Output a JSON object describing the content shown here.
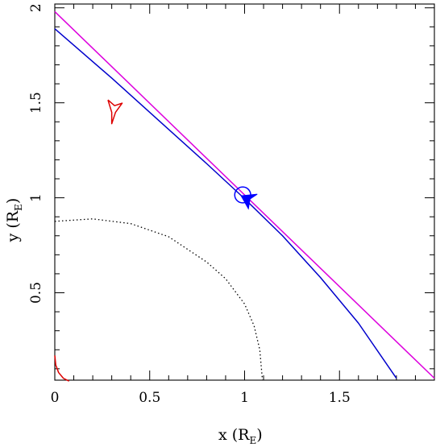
{
  "chart_data": {
    "type": "line",
    "xlabel": "x (R",
    "xlabel_sub": "E",
    "ylabel": "y (R",
    "ylabel_sub": "E",
    "label_close": ")",
    "xlim": [
      0,
      2
    ],
    "ylim": [
      0.04,
      2.02
    ],
    "x_ticks": [
      0,
      0.5,
      1,
      1.5
    ],
    "x_tick_labels": [
      "0",
      "0.5",
      "1",
      "1.5"
    ],
    "y_ticks": [
      0.5,
      1,
      1.5,
      2
    ],
    "y_tick_labels": [
      "0.5",
      "1",
      "1.5",
      "2"
    ],
    "colors": {
      "source_trajectory": "#0000cc",
      "straight_line": "#dd00dd",
      "caustic": "#dd0000",
      "einstein_ring": "#000000",
      "source_marker": "#0000ff"
    },
    "series": [
      {
        "key": "straight_line",
        "style": "solid",
        "points": [
          [
            0,
            1.98
          ],
          [
            2.0,
            0.05
          ]
        ]
      },
      {
        "key": "source_trajectory",
        "style": "solid",
        "points": [
          [
            0,
            1.89
          ],
          [
            0.3,
            1.63
          ],
          [
            0.6,
            1.36
          ],
          [
            0.8,
            1.18
          ],
          [
            1.0,
            0.995
          ],
          [
            1.2,
            0.8
          ],
          [
            1.4,
            0.58
          ],
          [
            1.6,
            0.34
          ],
          [
            1.8,
            0.05
          ]
        ]
      },
      {
        "key": "einstein_ring",
        "style": "dotted",
        "points": [
          [
            0.0,
            0.876
          ],
          [
            0.2,
            0.889
          ],
          [
            0.4,
            0.864
          ],
          [
            0.6,
            0.795
          ],
          [
            0.8,
            0.662
          ],
          [
            0.9,
            0.574
          ],
          [
            1.0,
            0.441
          ],
          [
            1.05,
            0.326
          ],
          [
            1.08,
            0.2
          ],
          [
            1.094,
            0.04
          ]
        ]
      },
      {
        "key": "caustic_central",
        "style": "solid",
        "points": [
          [
            0.0,
            0.17
          ],
          [
            0.005,
            0.12
          ],
          [
            0.02,
            0.08
          ],
          [
            0.045,
            0.05
          ],
          [
            0.075,
            0.035
          ]
        ]
      },
      {
        "key": "caustic_planetary",
        "style": "solid",
        "points": [
          [
            0.28,
            1.515
          ],
          [
            0.315,
            1.485
          ],
          [
            0.355,
            1.498
          ],
          [
            0.32,
            1.45
          ],
          [
            0.3,
            1.39
          ],
          [
            0.3,
            1.45
          ],
          [
            0.28,
            1.515
          ]
        ]
      }
    ],
    "markers": [
      {
        "type": "circle",
        "x": 0.99,
        "y": 1.015,
        "radius": 0.042
      },
      {
        "type": "arrow",
        "x": 1.02,
        "y": 0.985,
        "direction": "up-left"
      }
    ]
  }
}
